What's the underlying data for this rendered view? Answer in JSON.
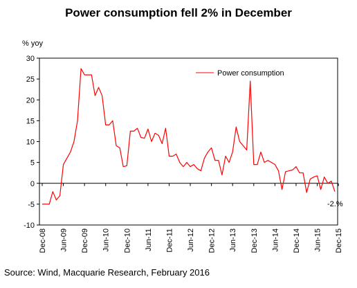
{
  "chart_data": {
    "type": "line",
    "title": "Power consumption fell 2% in December",
    "ylabel": "% yoy",
    "xlabel": "",
    "ylim": [
      -10,
      30
    ],
    "yticks": [
      30,
      25,
      20,
      15,
      10,
      5,
      0,
      -5,
      -10
    ],
    "xtick_labels": [
      "Dec-08",
      "Jun-09",
      "Dec-09",
      "Jun-10",
      "Dec-10",
      "Jun-11",
      "Dec-11",
      "Jun-12",
      "Dec-12",
      "Jun-13",
      "Dec-13",
      "Jun-14",
      "Dec-14",
      "Jun-15",
      "Dec-15"
    ],
    "x_start": "Dec-08",
    "x_end": "Dec-15",
    "legend_position": "top-right",
    "grid": false,
    "line_color": "#ff0000",
    "annotation": "-2.%",
    "source": "Source: Wind, Macquarie Research, February 2016",
    "series": [
      {
        "name": "Power consumption",
        "values": [
          -5.0,
          -5.0,
          -5.0,
          -2.0,
          -4.0,
          -3.0,
          4.5,
          6.0,
          7.5,
          10.0,
          15.0,
          27.5,
          26.0,
          26.0,
          26.0,
          21.0,
          23.0,
          21.0,
          14.0,
          14.0,
          15.0,
          9.0,
          8.5,
          4.0,
          4.2,
          12.5,
          12.5,
          13.2,
          11.0,
          10.8,
          13.0,
          10.0,
          12.0,
          11.5,
          9.5,
          13.2,
          6.5,
          6.5,
          7.0,
          5.0,
          4.0,
          5.0,
          4.0,
          4.5,
          3.5,
          3.0,
          6.0,
          7.5,
          8.5,
          5.5,
          5.5,
          2.0,
          6.5,
          5.0,
          7.5,
          13.5,
          10.0,
          9.0,
          8.0,
          24.5,
          4.5,
          4.5,
          7.5,
          5.0,
          5.5,
          5.0,
          4.5,
          3.0,
          -1.5,
          2.8,
          3.0,
          3.2,
          4.0,
          2.5,
          2.5,
          -2.2,
          1.0,
          1.5,
          1.8,
          -1.5,
          1.5,
          0.0,
          0.5,
          -2.0
        ]
      }
    ]
  }
}
